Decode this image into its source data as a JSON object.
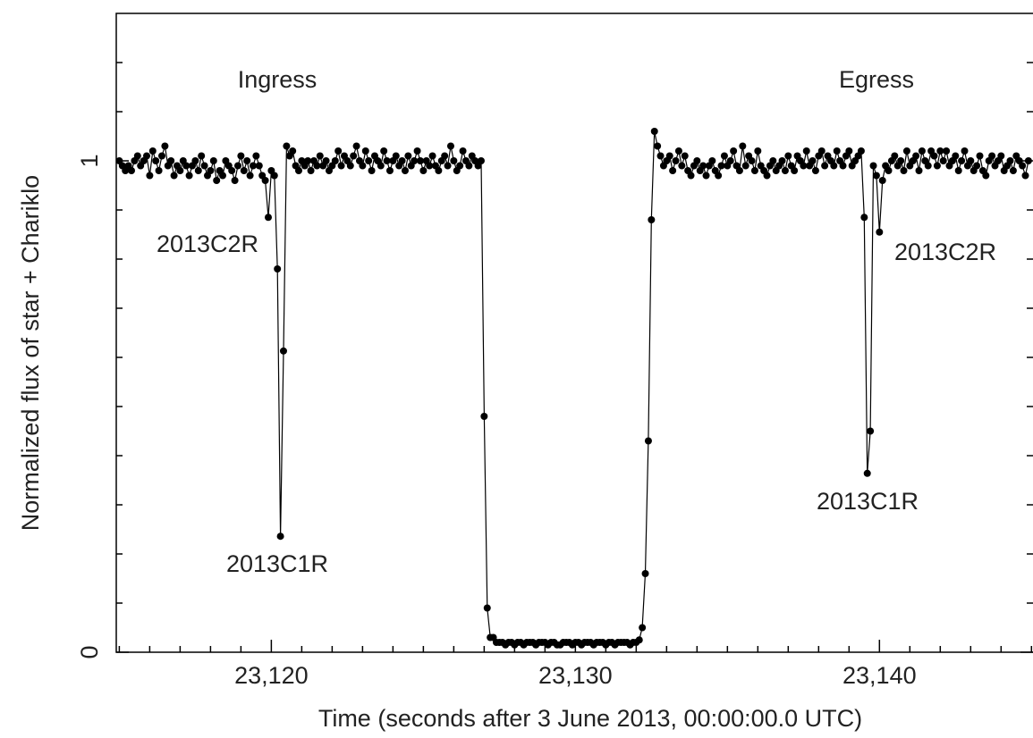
{
  "chart_data": {
    "type": "line",
    "xlabel": "Time (seconds after 3 June 2013, 00:00:00.0 UTC)",
    "ylabel": "Normalized flux of star + Chariklo",
    "xlim": [
      23114.9,
      23145.05
    ],
    "ylim": [
      0,
      1.3
    ],
    "xticks": [
      {
        "value": 23120,
        "label": "23,120"
      },
      {
        "value": 23130,
        "label": "23,130"
      },
      {
        "value": 23140,
        "label": "23,140"
      }
    ],
    "xminorticks": [
      23115,
      23116,
      23117,
      23118,
      23119,
      23121,
      23122,
      23123,
      23124,
      23125,
      23126,
      23127,
      23128,
      23129,
      23131,
      23132,
      23133,
      23134,
      23135,
      23136,
      23137,
      23138,
      23139,
      23141,
      23142,
      23143,
      23144,
      23145
    ],
    "yticks": [
      0,
      1
    ],
    "yminorticks": [
      0.1,
      0.2,
      0.3,
      0.4,
      0.5,
      0.6,
      0.7,
      0.8,
      0.9,
      1.1,
      1.2
    ],
    "color": "#000000",
    "annotations": [
      "Ingress",
      "Egress",
      "2013C2R",
      "2013C1R",
      "2013C2R",
      "2013C1R"
    ],
    "x": [
      23115.0,
      23115.1,
      23115.2,
      23115.3,
      23115.4,
      23115.5,
      23115.6,
      23115.7,
      23115.8,
      23115.9,
      23116.0,
      23116.1,
      23116.2,
      23116.3,
      23116.4,
      23116.5,
      23116.6,
      23116.7,
      23116.8,
      23116.9,
      23117.0,
      23117.1,
      23117.2,
      23117.3,
      23117.4,
      23117.5,
      23117.6,
      23117.7,
      23117.8,
      23117.9,
      23118.0,
      23118.1,
      23118.2,
      23118.3,
      23118.4,
      23118.5,
      23118.6,
      23118.7,
      23118.8,
      23118.9,
      23119.0,
      23119.1,
      23119.2,
      23119.3,
      23119.4,
      23119.5,
      23119.6,
      23119.7,
      23119.8,
      23119.9,
      23120.0,
      23120.1,
      23120.2,
      23120.3,
      23120.4,
      23120.5,
      23120.6,
      23120.7,
      23120.8,
      23120.9,
      23121.0,
      23121.1,
      23121.2,
      23121.3,
      23121.4,
      23121.5,
      23121.6,
      23121.7,
      23121.8,
      23121.9,
      23122.0,
      23122.1,
      23122.2,
      23122.3,
      23122.4,
      23122.5,
      23122.6,
      23122.7,
      23122.8,
      23122.9,
      23123.0,
      23123.1,
      23123.2,
      23123.3,
      23123.4,
      23123.5,
      23123.6,
      23123.7,
      23123.8,
      23123.9,
      23124.0,
      23124.1,
      23124.2,
      23124.3,
      23124.4,
      23124.5,
      23124.6,
      23124.7,
      23124.8,
      23124.9,
      23125.0,
      23125.1,
      23125.2,
      23125.3,
      23125.4,
      23125.5,
      23125.6,
      23125.7,
      23125.8,
      23125.9,
      23126.0,
      23126.1,
      23126.2,
      23126.3,
      23126.4,
      23126.5,
      23126.6,
      23126.7,
      23126.8,
      23126.9,
      23127.0,
      23127.1,
      23127.2,
      23127.3,
      23127.4,
      23127.5,
      23127.6,
      23127.7,
      23127.8,
      23127.9,
      23128.0,
      23128.1,
      23128.2,
      23128.3,
      23128.4,
      23128.5,
      23128.6,
      23128.7,
      23128.8,
      23128.9,
      23129.0,
      23129.1,
      23129.2,
      23129.3,
      23129.4,
      23129.5,
      23129.6,
      23129.7,
      23129.8,
      23129.9,
      23130.0,
      23130.1,
      23130.2,
      23130.3,
      23130.4,
      23130.5,
      23130.6,
      23130.7,
      23130.8,
      23130.9,
      23131.0,
      23131.1,
      23131.2,
      23131.3,
      23131.4,
      23131.5,
      23131.6,
      23131.7,
      23131.8,
      23131.9,
      23132.0,
      23132.1,
      23132.2,
      23132.3,
      23132.4,
      23132.5,
      23132.6,
      23132.7,
      23132.8,
      23132.9,
      23133.0,
      23133.1,
      23133.2,
      23133.3,
      23133.4,
      23133.5,
      23133.6,
      23133.7,
      23133.8,
      23133.9,
      23134.0,
      23134.1,
      23134.2,
      23134.3,
      23134.4,
      23134.5,
      23134.6,
      23134.7,
      23134.8,
      23134.9,
      23135.0,
      23135.1,
      23135.2,
      23135.3,
      23135.4,
      23135.5,
      23135.6,
      23135.7,
      23135.8,
      23135.9,
      23136.0,
      23136.1,
      23136.2,
      23136.3,
      23136.4,
      23136.5,
      23136.6,
      23136.7,
      23136.8,
      23136.9,
      23137.0,
      23137.1,
      23137.2,
      23137.3,
      23137.4,
      23137.5,
      23137.6,
      23137.7,
      23137.8,
      23137.9,
      23138.0,
      23138.1,
      23138.2,
      23138.3,
      23138.4,
      23138.5,
      23138.6,
      23138.7,
      23138.8,
      23138.9,
      23139.0,
      23139.1,
      23139.2,
      23139.3,
      23139.4,
      23139.5,
      23139.6,
      23139.7,
      23139.8,
      23139.9,
      23140.0,
      23140.1,
      23140.2,
      23140.3,
      23140.4,
      23140.5,
      23140.6,
      23140.7,
      23140.8,
      23140.9,
      23141.0,
      23141.1,
      23141.2,
      23141.3,
      23141.4,
      23141.5,
      23141.6,
      23141.7,
      23141.8,
      23141.9,
      23142.0,
      23142.1,
      23142.2,
      23142.3,
      23142.4,
      23142.5,
      23142.6,
      23142.7,
      23142.8,
      23142.9,
      23143.0,
      23143.1,
      23143.2,
      23143.3,
      23143.4,
      23143.5,
      23143.6,
      23143.7,
      23143.8,
      23143.9,
      23144.0,
      23144.1,
      23144.2,
      23144.3,
      23144.4,
      23144.5,
      23144.6,
      23144.7,
      23144.8,
      23144.9
    ],
    "values": [
      1.0,
      0.99,
      0.98,
      0.99,
      0.98,
      1.0,
      1.01,
      0.99,
      1.0,
      1.01,
      0.97,
      1.02,
      1.0,
      0.98,
      1.01,
      1.03,
      0.99,
      1.0,
      0.97,
      0.99,
      0.98,
      1.0,
      0.99,
      0.97,
      0.99,
      1.0,
      0.98,
      1.01,
      0.99,
      0.97,
      0.98,
      1.0,
      0.96,
      0.98,
      0.97,
      1.0,
      0.99,
      0.98,
      0.96,
      0.99,
      1.01,
      0.98,
      1.0,
      0.97,
      0.99,
      1.01,
      0.99,
      0.97,
      0.96,
      0.885,
      0.98,
      0.97,
      0.78,
      0.236,
      0.613,
      1.03,
      1.01,
      1.02,
      0.99,
      0.98,
      1.0,
      0.99,
      1.0,
      0.98,
      1.0,
      0.99,
      1.01,
      0.99,
      1.0,
      0.98,
      0.99,
      1.0,
      1.02,
      0.99,
      1.01,
      1.0,
      0.99,
      1.01,
      1.03,
      1.0,
      0.99,
      1.02,
      1.0,
      0.98,
      1.01,
      1.0,
      0.99,
      1.02,
      1.0,
      0.98,
      1.0,
      1.01,
      0.99,
      1.0,
      0.98,
      1.01,
      0.99,
      1.0,
      1.02,
      1.0,
      0.98,
      1.0,
      0.99,
      1.01,
      0.99,
      0.98,
      1.0,
      1.01,
      0.99,
      1.03,
      1.0,
      0.98,
      0.99,
      1.02,
      1.0,
      0.99,
      1.01,
      1.0,
      0.99,
      1.0,
      0.48,
      0.09,
      0.03,
      0.03,
      0.02,
      0.02,
      0.02,
      0.015,
      0.02,
      0.02,
      0.015,
      0.02,
      0.02,
      0.015,
      0.02,
      0.02,
      0.02,
      0.015,
      0.02,
      0.02,
      0.02,
      0.015,
      0.02,
      0.02,
      0.015,
      0.015,
      0.02,
      0.02,
      0.02,
      0.015,
      0.02,
      0.02,
      0.015,
      0.02,
      0.02,
      0.02,
      0.015,
      0.02,
      0.02,
      0.02,
      0.015,
      0.02,
      0.02,
      0.015,
      0.02,
      0.02,
      0.02,
      0.02,
      0.015,
      0.02,
      0.02,
      0.025,
      0.05,
      0.16,
      0.43,
      0.88,
      1.06,
      1.03,
      1.01,
      0.99,
      1.0,
      1.01,
      0.98,
      1.0,
      1.02,
      0.99,
      1.01,
      0.98,
      0.97,
      0.99,
      1.0,
      0.98,
      0.99,
      0.97,
      0.99,
      1.0,
      0.98,
      0.97,
      0.99,
      1.01,
      0.99,
      1.0,
      1.02,
      0.99,
      0.98,
      1.03,
      0.99,
      1.01,
      1.0,
      0.98,
      1.02,
      0.99,
      0.98,
      0.97,
      0.99,
      1.0,
      0.98,
      0.99,
      1.0,
      0.98,
      1.01,
      0.99,
      0.98,
      1.01,
      1.0,
      0.99,
      1.02,
      0.99,
      1.0,
      0.98,
      1.01,
      1.02,
      0.99,
      1.01,
      1.0,
      0.99,
      1.02,
      1.0,
      0.99,
      1.01,
      1.02,
      0.99,
      1.0,
      1.01,
      1.02,
      0.885,
      0.364,
      0.45,
      0.99,
      0.97,
      0.855,
      0.96,
      0.99,
      0.98,
      1.0,
      1.01,
      0.99,
      1.0,
      0.98,
      1.02,
      0.99,
      1.0,
      1.01,
      0.98,
      1.02,
      1.0,
      0.99,
      1.02,
      1.01,
      0.99,
      1.02,
      1.0,
      1.02,
      0.99,
      1.0,
      1.01,
      0.98,
      1.0,
      1.02,
      0.99,
      1.0,
      0.98,
      0.99,
      1.01,
      0.98,
      0.97,
      1.0,
      1.01,
      0.99,
      1.0,
      1.01,
      0.98,
      0.99,
      1.0,
      0.98,
      1.01,
      1.0,
      0.99,
      0.97,
      1.0
    ]
  }
}
